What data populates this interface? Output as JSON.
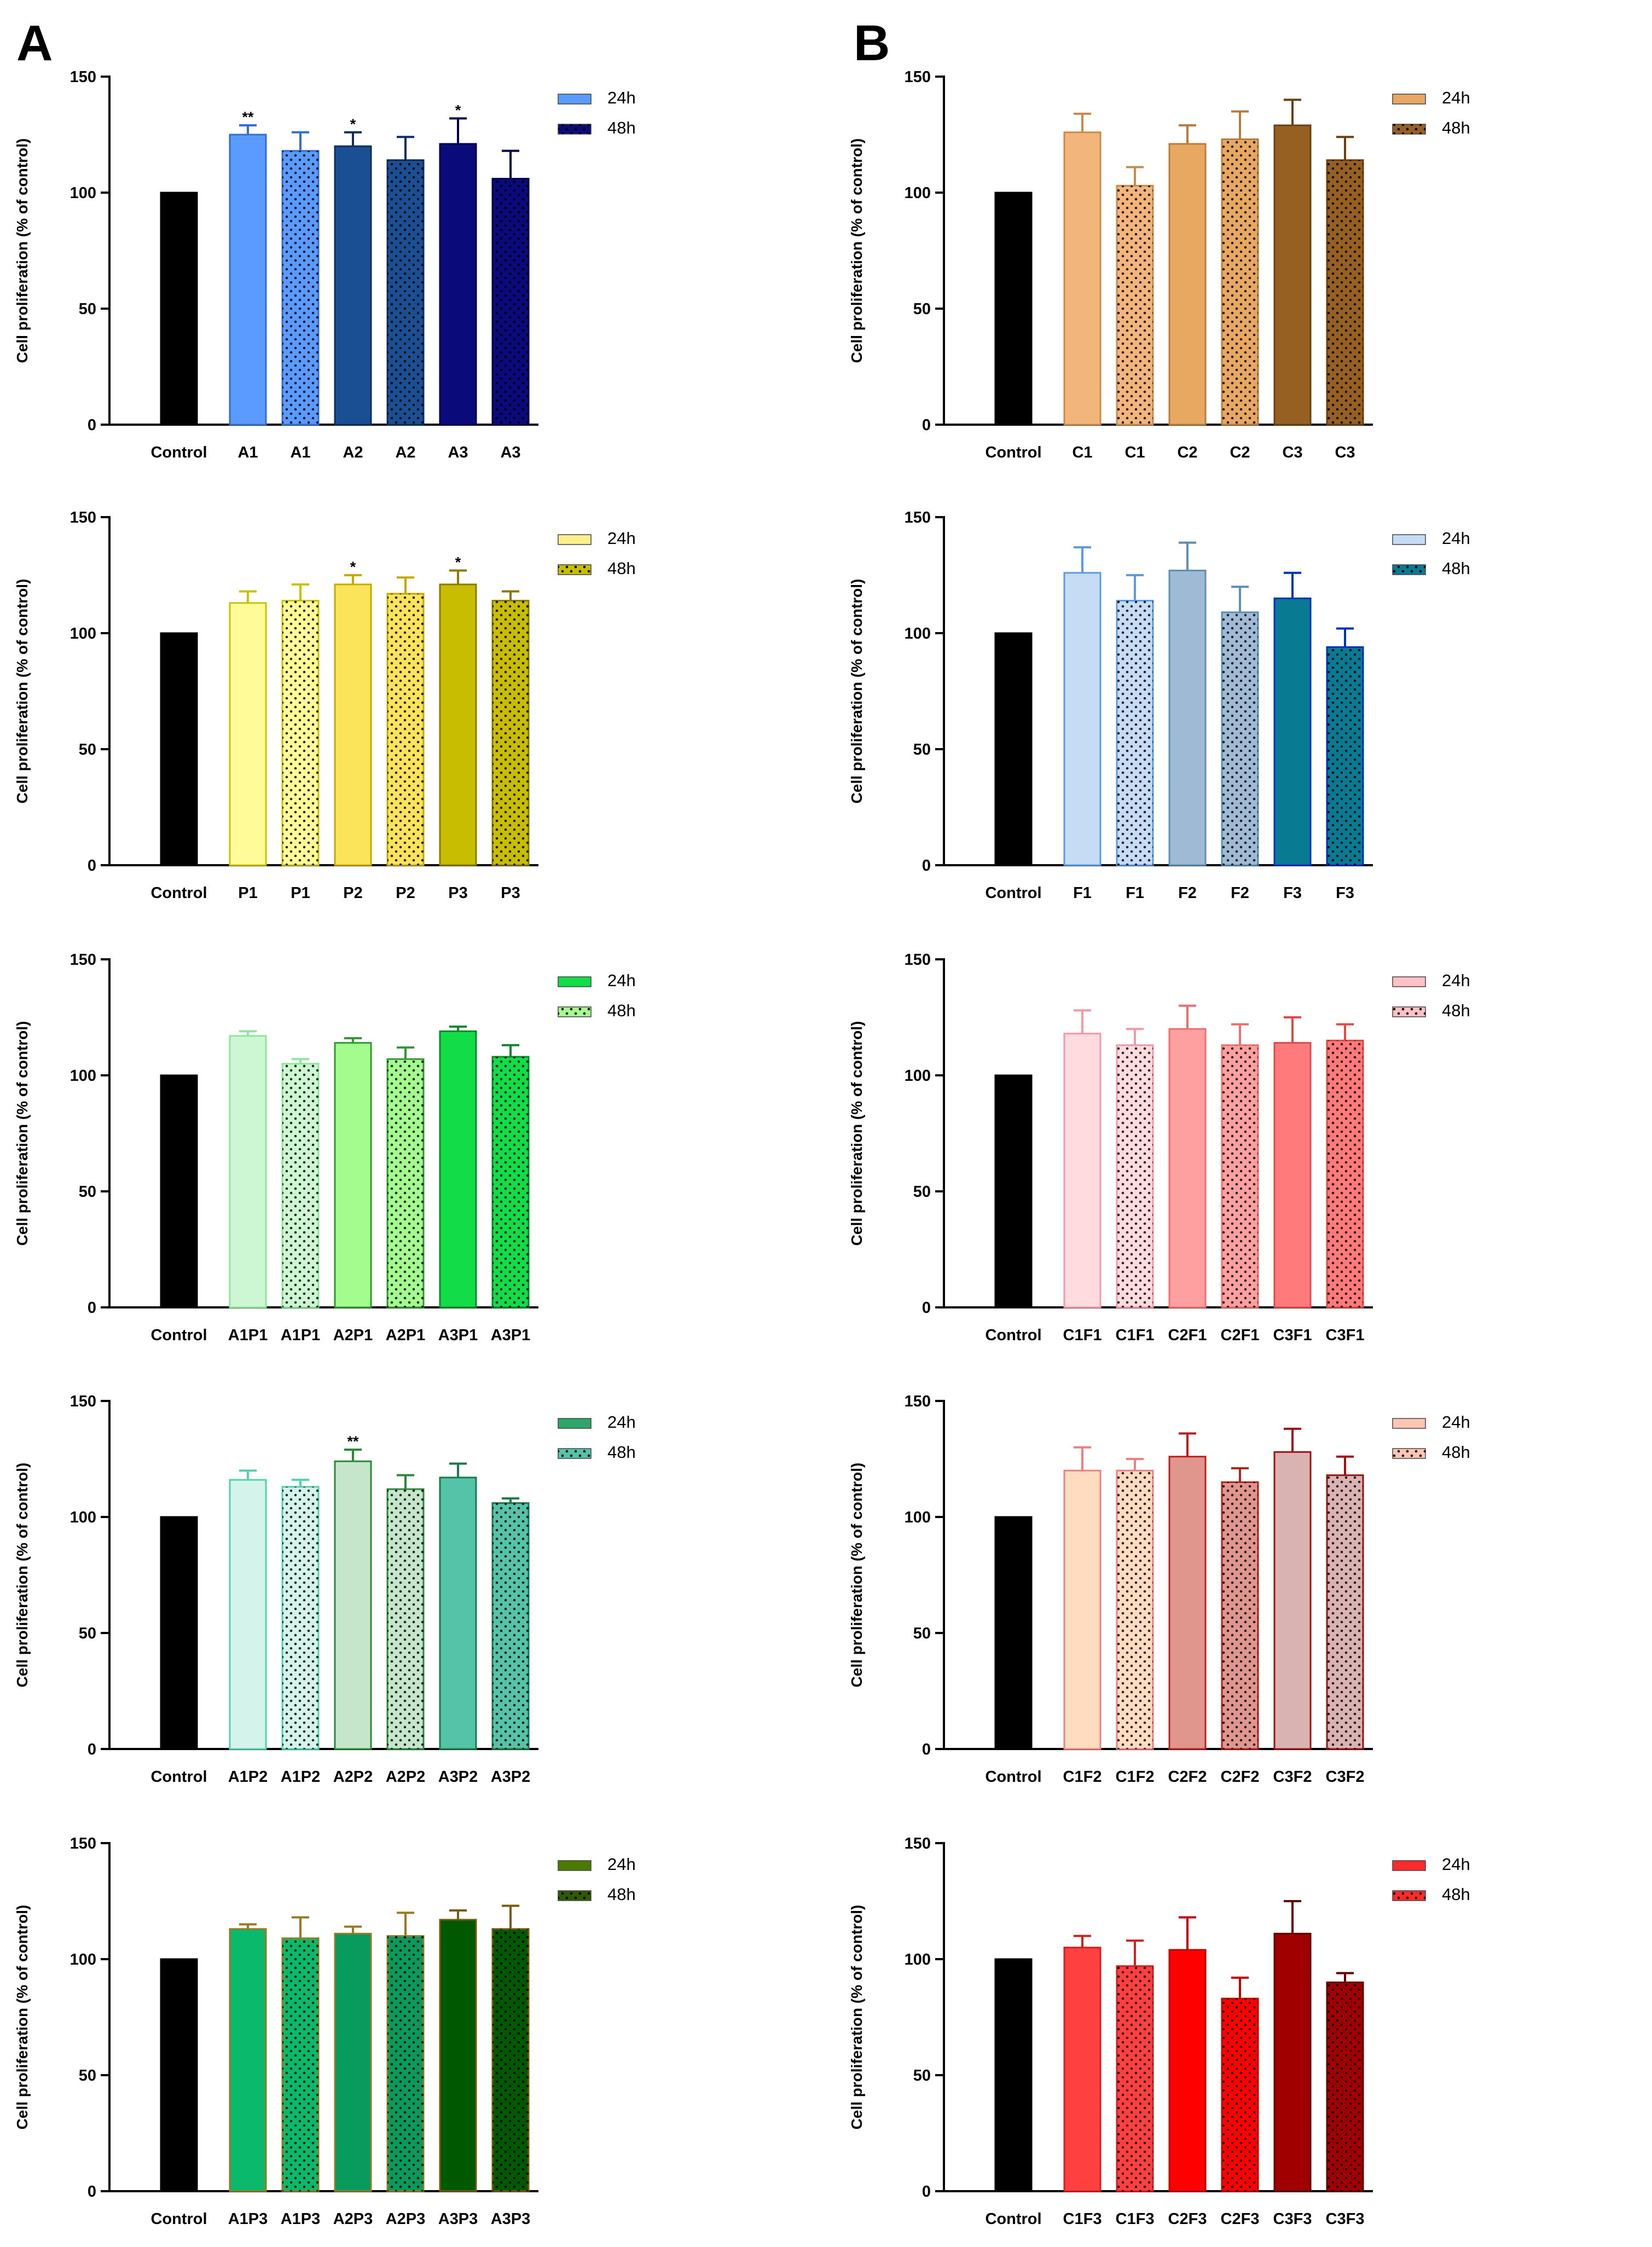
{
  "panels": {
    "A": "A",
    "B": "B"
  },
  "chart_data": [
    {
      "panel": "A",
      "type": "bar",
      "ylabel": "Cell proliferation (% of control)",
      "ylim": [
        0,
        150
      ],
      "yticks": [
        0,
        50,
        100,
        150
      ],
      "categories": [
        "Control",
        "A1",
        "A1",
        "A2",
        "A2",
        "A3",
        "A3"
      ],
      "values": [
        100,
        125,
        118,
        120,
        114,
        121,
        106
      ],
      "errors": [
        0,
        4,
        8,
        6,
        10,
        11,
        12
      ],
      "significance": [
        "",
        "**",
        "",
        "*",
        "",
        "*",
        ""
      ],
      "colors": [
        "#000000",
        "#5b9bff",
        "#5b9bff",
        "#1a4f94",
        "#1a4f94",
        "#0a0a7a",
        "#0a0a7a"
      ],
      "edge_colors": [
        "#000000",
        "#2f6fd6",
        "#2f6fd6",
        "#0f2f5e",
        "#0f2f5e",
        "#000050",
        "#000050"
      ],
      "dotted": [
        false,
        false,
        true,
        false,
        true,
        false,
        true
      ],
      "legend": [
        "24h",
        "48h"
      ],
      "legend_colors": [
        "#5b9bff",
        "#0a0a7a"
      ]
    },
    {
      "panel": "B",
      "type": "bar",
      "ylabel": "Cell proliferation (% of control)",
      "ylim": [
        0,
        150
      ],
      "yticks": [
        0,
        50,
        100,
        150
      ],
      "categories": [
        "Control",
        "C1",
        "C1",
        "C2",
        "C2",
        "C3",
        "C3"
      ],
      "values": [
        100,
        126,
        103,
        121,
        123,
        129,
        114
      ],
      "errors": [
        0,
        8,
        8,
        8,
        12,
        11,
        10
      ],
      "significance": [
        "",
        "",
        "",
        "",
        "",
        "",
        ""
      ],
      "colors": [
        "#000000",
        "#f2b57c",
        "#f2b57c",
        "#e8a862",
        "#e8a862",
        "#956021",
        "#956021"
      ],
      "edge_colors": [
        "#000000",
        "#c98a4b",
        "#c98a4b",
        "#b87d3c",
        "#b87d3c",
        "#6b4010",
        "#6b4010"
      ],
      "dotted": [
        false,
        false,
        true,
        false,
        true,
        false,
        true
      ],
      "legend": [
        "24h",
        "48h"
      ],
      "legend_colors": [
        "#e8a862",
        "#956021"
      ]
    },
    {
      "panel": "A",
      "type": "bar",
      "ylabel": "Cell proliferation (% of control)",
      "ylim": [
        0,
        150
      ],
      "yticks": [
        0,
        50,
        100,
        150
      ],
      "categories": [
        "Control",
        "P1",
        "P1",
        "P2",
        "P2",
        "P3",
        "P3"
      ],
      "values": [
        100,
        113,
        114,
        121,
        117,
        121,
        114
      ],
      "errors": [
        0,
        5,
        7,
        4,
        7,
        6,
        4
      ],
      "significance": [
        "",
        "",
        "",
        "*",
        "",
        "*",
        ""
      ],
      "colors": [
        "#000000",
        "#fffb99",
        "#fffb99",
        "#fbe35a",
        "#fbe35a",
        "#c8bd00",
        "#c8bd00"
      ],
      "edge_colors": [
        "#000000",
        "#c9c400",
        "#c9c400",
        "#c9a800",
        "#c9a800",
        "#8a7a00",
        "#8a7a00"
      ],
      "dotted": [
        false,
        false,
        true,
        false,
        true,
        false,
        true
      ],
      "legend": [
        "24h",
        "48h"
      ],
      "legend_colors": [
        "#fbf08a",
        "#c8bd00"
      ]
    },
    {
      "panel": "B",
      "type": "bar",
      "ylabel": "Cell proliferation (% of control)",
      "ylim": [
        0,
        150
      ],
      "yticks": [
        0,
        50,
        100,
        150
      ],
      "categories": [
        "Control",
        "F1",
        "F1",
        "F2",
        "F2",
        "F3",
        "F3"
      ],
      "values": [
        100,
        126,
        114,
        127,
        109,
        115,
        94
      ],
      "errors": [
        0,
        11,
        11,
        12,
        11,
        11,
        8
      ],
      "significance": [
        "",
        "",
        "",
        "",
        "",
        "",
        ""
      ],
      "colors": [
        "#000000",
        "#c6dcf5",
        "#c6dcf5",
        "#9ebad4",
        "#9ebad4",
        "#087a92",
        "#087a92"
      ],
      "edge_colors": [
        "#000000",
        "#5b9be0",
        "#5b9be0",
        "#5d8fb4",
        "#5d8fb4",
        "#0030c0",
        "#0030c0"
      ],
      "dotted": [
        false,
        false,
        true,
        false,
        true,
        false,
        true
      ],
      "legend": [
        "24h",
        "48h"
      ],
      "legend_colors": [
        "#c6dcf5",
        "#087a92"
      ]
    },
    {
      "panel": "A",
      "type": "bar",
      "ylabel": "Cell proliferation (% of control)",
      "ylim": [
        0,
        150
      ],
      "yticks": [
        0,
        50,
        100,
        150
      ],
      "categories": [
        "Control",
        "A1P1",
        "A1P1",
        "A2P1",
        "A2P1",
        "A3P1",
        "A3P1"
      ],
      "values": [
        100,
        117,
        105,
        114,
        107,
        119,
        108
      ],
      "errors": [
        0,
        2,
        2,
        2,
        5,
        2,
        5
      ],
      "significance": [
        "",
        "",
        "",
        "",
        "",
        "",
        ""
      ],
      "colors": [
        "#000000",
        "#ccf7d2",
        "#ccf7d2",
        "#a4fc8f",
        "#a4fc8f",
        "#12dd49",
        "#12dd49"
      ],
      "edge_colors": [
        "#000000",
        "#8ee79a",
        "#8ee79a",
        "#2f9a2f",
        "#2f9a2f",
        "#0a8a2a",
        "#0a8a2a"
      ],
      "dotted": [
        false,
        false,
        true,
        false,
        true,
        false,
        true
      ],
      "legend": [
        "24h",
        "48h"
      ],
      "legend_colors": [
        "#12dd49",
        "#a4fc8f"
      ]
    },
    {
      "panel": "B",
      "type": "bar",
      "ylabel": "Cell proliferation (% of control)",
      "ylim": [
        0,
        150
      ],
      "yticks": [
        0,
        50,
        100,
        150
      ],
      "categories": [
        "Control",
        "C1F1",
        "C1F1",
        "C2F1",
        "C2F1",
        "C3F1",
        "C3F1"
      ],
      "values": [
        100,
        118,
        113,
        120,
        113,
        114,
        115
      ],
      "errors": [
        0,
        10,
        7,
        10,
        9,
        11,
        7
      ],
      "significance": [
        "",
        "",
        "",
        "",
        "",
        "",
        ""
      ],
      "colors": [
        "#000000",
        "#ffdadf",
        "#ffdadf",
        "#ffa0a0",
        "#ffa0a0",
        "#ff7b7b",
        "#ff7b7b"
      ],
      "edge_colors": [
        "#000000",
        "#f29aa6",
        "#f29aa6",
        "#ee6e6e",
        "#ee6e6e",
        "#e04848",
        "#e04848"
      ],
      "dotted": [
        false,
        false,
        true,
        false,
        true,
        false,
        true
      ],
      "legend": [
        "24h",
        "48h"
      ],
      "legend_colors": [
        "#ffc0c6",
        "#ffc0c6"
      ]
    },
    {
      "panel": "A",
      "type": "bar",
      "ylabel": "Cell proliferation (% of control)",
      "ylim": [
        0,
        150
      ],
      "yticks": [
        0,
        50,
        100,
        150
      ],
      "categories": [
        "Control",
        "A1P2",
        "A1P2",
        "A2P2",
        "A2P2",
        "A3P2",
        "A3P2"
      ],
      "values": [
        100,
        116,
        113,
        124,
        112,
        117,
        106
      ],
      "errors": [
        0,
        4,
        3,
        5,
        6,
        6,
        2
      ],
      "significance": [
        "",
        "",
        "",
        "**",
        "",
        "",
        ""
      ],
      "colors": [
        "#000000",
        "#d4f3ea",
        "#d4f3ea",
        "#c6e6cb",
        "#c6e6cb",
        "#54c3a7",
        "#54c3a7"
      ],
      "edge_colors": [
        "#000000",
        "#4fd4b0",
        "#4fd4b0",
        "#2a8a3a",
        "#2a8a3a",
        "#1a7a4a",
        "#1a7a4a"
      ],
      "dotted": [
        false,
        false,
        true,
        false,
        true,
        false,
        true
      ],
      "legend": [
        "24h",
        "48h"
      ],
      "legend_colors": [
        "#2ea66a",
        "#54c3a7"
      ]
    },
    {
      "panel": "B",
      "type": "bar",
      "ylabel": "Cell proliferation (% of control)",
      "ylim": [
        0,
        150
      ],
      "yticks": [
        0,
        50,
        100,
        150
      ],
      "categories": [
        "Control",
        "C1F2",
        "C1F2",
        "C2F2",
        "C2F2",
        "C3F2",
        "C3F2"
      ],
      "values": [
        100,
        120,
        120,
        126,
        115,
        128,
        118
      ],
      "errors": [
        0,
        10,
        5,
        10,
        6,
        10,
        8
      ],
      "significance": [
        "",
        "",
        "",
        "",
        "",
        "",
        ""
      ],
      "colors": [
        "#000000",
        "#ffdcc0",
        "#ffdcc0",
        "#e0968c",
        "#e0968c",
        "#d9b2b2",
        "#d9b2b2"
      ],
      "edge_colors": [
        "#000000",
        "#f08080",
        "#f08080",
        "#b82020",
        "#b82020",
        "#a01010",
        "#a01010"
      ],
      "dotted": [
        false,
        false,
        true,
        false,
        true,
        false,
        true
      ],
      "legend": [
        "24h",
        "48h"
      ],
      "legend_colors": [
        "#ffc6b6",
        "#ffc6b6"
      ]
    },
    {
      "panel": "A",
      "type": "bar",
      "ylabel": "Cell proliferation (% of control)",
      "ylim": [
        0,
        150
      ],
      "yticks": [
        0,
        50,
        100,
        150
      ],
      "categories": [
        "Control",
        "A1P3",
        "A1P3",
        "A2P3",
        "A2P3",
        "A3P3",
        "A3P3"
      ],
      "values": [
        100,
        113,
        109,
        111,
        110,
        117,
        113
      ],
      "errors": [
        0,
        2,
        9,
        3,
        10,
        4,
        10
      ],
      "significance": [
        "",
        "",
        "",
        "",
        "",
        "",
        ""
      ],
      "colors": [
        "#000000",
        "#0ab96c",
        "#0ab96c",
        "#099a5e",
        "#099a5e",
        "#005800",
        "#005800"
      ],
      "edge_colors": [
        "#000000",
        "#9a7a20",
        "#9a7a20",
        "#9a7a20",
        "#9a7a20",
        "#7a5a10",
        "#7a5a10"
      ],
      "dotted": [
        false,
        false,
        true,
        false,
        true,
        false,
        true
      ],
      "legend": [
        "24h",
        "48h"
      ],
      "legend_colors": [
        "#4a7a00",
        "#305a00"
      ]
    },
    {
      "panel": "B",
      "type": "bar",
      "ylabel": "Cell proliferation (% of control)",
      "ylim": [
        0,
        150
      ],
      "yticks": [
        0,
        50,
        100,
        150
      ],
      "categories": [
        "Control",
        "C1F3",
        "C1F3",
        "C2F3",
        "C2F3",
        "C3F3",
        "C3F3"
      ],
      "values": [
        100,
        105,
        97,
        104,
        83,
        111,
        90
      ],
      "errors": [
        0,
        5,
        11,
        14,
        9,
        14,
        4
      ],
      "significance": [
        "",
        "",
        "",
        "",
        "",
        "",
        ""
      ],
      "colors": [
        "#000000",
        "#ff4040",
        "#ff4040",
        "#ff0000",
        "#ff0000",
        "#a00000",
        "#a00000"
      ],
      "edge_colors": [
        "#000000",
        "#d02020",
        "#d02020",
        "#c00000",
        "#c00000",
        "#600000",
        "#600000"
      ],
      "dotted": [
        false,
        false,
        true,
        false,
        true,
        false,
        true
      ],
      "legend": [
        "24h",
        "48h"
      ],
      "legend_colors": [
        "#ff2a2a",
        "#ff2a2a"
      ]
    }
  ]
}
